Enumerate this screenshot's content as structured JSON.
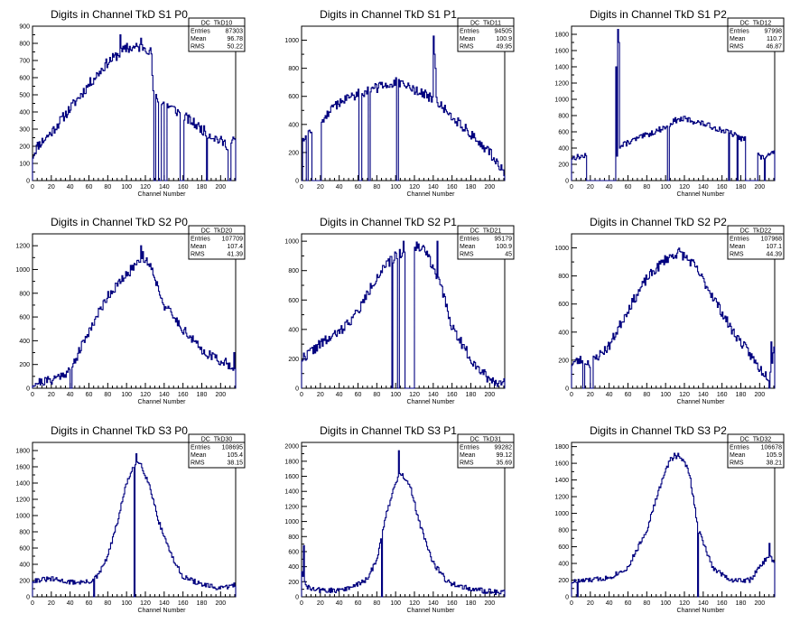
{
  "xlabel": "Channel Number",
  "x_ticks": [
    0,
    20,
    40,
    60,
    80,
    100,
    120,
    140,
    160,
    180,
    200
  ],
  "xlim": [
    0,
    216
  ],
  "stats_labels": {
    "entries": "Entries",
    "mean": "Mean",
    "rms": "RMS"
  },
  "colors": {
    "line": "#00007f",
    "frame": "#000000",
    "background": "#ffffff"
  },
  "chart_data": [
    {
      "type": "histogram-step",
      "title": "Digits in Channel TkD S1 P0",
      "stats": {
        "name": "DC_TkD10",
        "entries": "87303",
        "mean": "96.78",
        "rms": "50.22"
      },
      "ylim": [
        0,
        900
      ],
      "y_ticks": [
        0,
        100,
        200,
        300,
        400,
        500,
        600,
        700,
        800,
        900
      ],
      "profile": [
        [
          0,
          140
        ],
        [
          5,
          200
        ],
        [
          20,
          280
        ],
        [
          40,
          420
        ],
        [
          60,
          560
        ],
        [
          80,
          690
        ],
        [
          100,
          770
        ],
        [
          120,
          780
        ],
        [
          127,
          740
        ],
        [
          128,
          500
        ],
        [
          160,
          380
        ],
        [
          175,
          320
        ],
        [
          185,
          280
        ],
        [
          200,
          230
        ],
        [
          210,
          200
        ],
        [
          216,
          250
        ]
      ],
      "noise": 30,
      "seed": 11,
      "spikes": [
        [
          93,
          850
        ],
        [
          100,
          800
        ],
        [
          115,
          830
        ]
      ],
      "dips": [
        [
          129,
          0
        ],
        [
          130,
          0
        ],
        [
          134,
          0
        ],
        [
          135,
          0
        ],
        [
          136,
          0
        ],
        [
          140,
          0
        ],
        [
          141,
          0
        ],
        [
          142,
          0
        ],
        [
          157,
          0
        ],
        [
          158,
          0
        ],
        [
          159,
          0
        ],
        [
          160,
          0
        ],
        [
          185,
          0
        ],
        [
          208,
          0
        ],
        [
          209,
          0
        ],
        [
          210,
          0
        ]
      ]
    },
    {
      "type": "histogram-step",
      "title": "Digits in Channel TkD S1 P1",
      "stats": {
        "name": "DC_TkD11",
        "entries": "94505",
        "mean": "100.9",
        "rms": "49.95"
      },
      "ylim": [
        0,
        1100
      ],
      "y_ticks": [
        0,
        200,
        400,
        600,
        800,
        1000
      ],
      "profile": [
        [
          0,
          300
        ],
        [
          20,
          420
        ],
        [
          40,
          560
        ],
        [
          60,
          620
        ],
        [
          80,
          660
        ],
        [
          100,
          700
        ],
        [
          120,
          650
        ],
        [
          140,
          580
        ],
        [
          160,
          460
        ],
        [
          180,
          330
        ],
        [
          200,
          200
        ],
        [
          216,
          60
        ]
      ],
      "noise": 35,
      "seed": 12,
      "spikes": [
        [
          140,
          1030
        ],
        [
          141,
          900
        ],
        [
          142,
          800
        ]
      ],
      "dips": [
        [
          0,
          0
        ],
        [
          5,
          0
        ],
        [
          6,
          0
        ],
        [
          11,
          0
        ],
        [
          12,
          0
        ],
        [
          13,
          0
        ],
        [
          14,
          0
        ],
        [
          15,
          0
        ],
        [
          16,
          0
        ],
        [
          17,
          0
        ],
        [
          18,
          0
        ],
        [
          19,
          0
        ],
        [
          20,
          0
        ],
        [
          61,
          0
        ],
        [
          62,
          0
        ],
        [
          63,
          0
        ],
        [
          71,
          0
        ],
        [
          72,
          0
        ],
        [
          101,
          0
        ],
        [
          102,
          0
        ]
      ]
    },
    {
      "type": "histogram-step",
      "title": "Digits in Channel TkD S1 P2",
      "stats": {
        "name": "DC_TkD12",
        "entries": "97998",
        "mean": "110.7",
        "rms": "46.87"
      },
      "ylim": [
        0,
        1900
      ],
      "y_ticks": [
        0,
        200,
        400,
        600,
        800,
        1000,
        1200,
        1400,
        1600,
        1800
      ],
      "profile": [
        [
          0,
          280
        ],
        [
          12,
          300
        ],
        [
          15,
          300
        ],
        [
          47,
          380
        ],
        [
          50,
          400
        ],
        [
          60,
          470
        ],
        [
          80,
          560
        ],
        [
          100,
          660
        ],
        [
          110,
          740
        ],
        [
          120,
          760
        ],
        [
          140,
          700
        ],
        [
          160,
          620
        ],
        [
          170,
          580
        ],
        [
          180,
          520
        ],
        [
          195,
          480
        ],
        [
          200,
          280
        ],
        [
          210,
          300
        ],
        [
          216,
          350
        ]
      ],
      "noise": 35,
      "seed": 13,
      "spikes": [
        [
          47,
          1400
        ],
        [
          48,
          300
        ],
        [
          49,
          1860
        ],
        [
          50,
          1700
        ]
      ],
      "dips": [
        [
          16,
          0
        ],
        [
          17,
          0
        ],
        [
          18,
          0
        ],
        [
          19,
          0
        ],
        [
          20,
          0
        ],
        [
          21,
          0
        ],
        [
          22,
          0
        ],
        [
          23,
          0
        ],
        [
          24,
          0
        ],
        [
          25,
          0
        ],
        [
          26,
          0
        ],
        [
          27,
          0
        ],
        [
          28,
          0
        ],
        [
          29,
          0
        ],
        [
          30,
          0
        ],
        [
          31,
          0
        ],
        [
          32,
          0
        ],
        [
          33,
          0
        ],
        [
          34,
          0
        ],
        [
          35,
          0
        ],
        [
          36,
          0
        ],
        [
          37,
          0
        ],
        [
          38,
          0
        ],
        [
          39,
          0
        ],
        [
          40,
          0
        ],
        [
          41,
          0
        ],
        [
          42,
          0
        ],
        [
          43,
          0
        ],
        [
          44,
          0
        ],
        [
          45,
          0
        ],
        [
          46,
          0
        ],
        [
          102,
          0
        ],
        [
          103,
          0
        ],
        [
          167,
          0
        ],
        [
          176,
          0
        ],
        [
          185,
          0
        ],
        [
          186,
          0
        ],
        [
          187,
          0
        ],
        [
          188,
          0
        ],
        [
          189,
          0
        ],
        [
          190,
          0
        ],
        [
          191,
          0
        ],
        [
          192,
          0
        ],
        [
          193,
          0
        ],
        [
          194,
          0
        ],
        [
          195,
          0
        ],
        [
          196,
          0
        ],
        [
          197,
          0
        ],
        [
          205,
          0
        ]
      ]
    },
    {
      "type": "histogram-step",
      "title": "Digits in Channel TkD S2 P0",
      "stats": {
        "name": "DC_TkD20",
        "entries": "107709",
        "mean": "107.4",
        "rms": "41.39"
      },
      "ylim": [
        0,
        1300
      ],
      "y_ticks": [
        0,
        200,
        400,
        600,
        800,
        1000,
        1200
      ],
      "profile": [
        [
          0,
          40
        ],
        [
          20,
          70
        ],
        [
          40,
          150
        ],
        [
          60,
          480
        ],
        [
          80,
          780
        ],
        [
          100,
          950
        ],
        [
          115,
          1100
        ],
        [
          125,
          1050
        ],
        [
          140,
          700
        ],
        [
          160,
          500
        ],
        [
          180,
          320
        ],
        [
          200,
          230
        ],
        [
          216,
          180
        ]
      ],
      "noise": 40,
      "seed": 21,
      "spikes": [
        [
          115,
          1200
        ],
        [
          117,
          1150
        ],
        [
          214,
          300
        ]
      ],
      "dips": [
        [
          40,
          0
        ],
        [
          41,
          0
        ]
      ]
    },
    {
      "type": "histogram-step",
      "title": "Digits in Channel TkD S2 P1",
      "stats": {
        "name": "DC_TkD21",
        "entries": "95179",
        "mean": "100.9",
        "rms": "45"
      },
      "ylim": [
        0,
        1050
      ],
      "y_ticks": [
        0,
        200,
        400,
        600,
        800,
        1000
      ],
      "profile": [
        [
          0,
          200
        ],
        [
          20,
          300
        ],
        [
          40,
          380
        ],
        [
          60,
          520
        ],
        [
          80,
          760
        ],
        [
          100,
          900
        ],
        [
          115,
          960
        ],
        [
          130,
          960
        ],
        [
          145,
          760
        ],
        [
          160,
          420
        ],
        [
          180,
          200
        ],
        [
          200,
          60
        ],
        [
          216,
          30
        ]
      ],
      "noise": 35,
      "seed": 22,
      "spikes": [
        [
          144,
          1000
        ],
        [
          108,
          1000
        ]
      ],
      "dips": [
        [
          96,
          0
        ],
        [
          102,
          0
        ],
        [
          103,
          0
        ],
        [
          110,
          0
        ],
        [
          111,
          0
        ],
        [
          112,
          0
        ],
        [
          113,
          0
        ],
        [
          114,
          0
        ],
        [
          115,
          0
        ],
        [
          116,
          0
        ],
        [
          117,
          0
        ],
        [
          118,
          0
        ],
        [
          119,
          0
        ]
      ]
    },
    {
      "type": "histogram-step",
      "title": "Digits in Channel TkD S2 P2",
      "stats": {
        "name": "DC_TkD22",
        "entries": "107968",
        "mean": "107.1",
        "rms": "44.39"
      },
      "ylim": [
        0,
        1100
      ],
      "y_ticks": [
        0,
        200,
        400,
        600,
        800,
        1000
      ],
      "profile": [
        [
          0,
          180
        ],
        [
          10,
          200
        ],
        [
          20,
          180
        ],
        [
          40,
          300
        ],
        [
          60,
          560
        ],
        [
          80,
          780
        ],
        [
          100,
          920
        ],
        [
          115,
          970
        ],
        [
          130,
          880
        ],
        [
          150,
          660
        ],
        [
          170,
          420
        ],
        [
          190,
          240
        ],
        [
          200,
          140
        ],
        [
          210,
          80
        ],
        [
          216,
          300
        ]
      ],
      "noise": 35,
      "seed": 23,
      "spikes": [
        [
          212,
          330
        ]
      ],
      "dips": [
        [
          12,
          0
        ],
        [
          13,
          0
        ],
        [
          20,
          0
        ],
        [
          21,
          0
        ],
        [
          22,
          0
        ],
        [
          210,
          0
        ]
      ]
    },
    {
      "type": "histogram-step",
      "title": "Digits in Channel TkD S3 P0",
      "stats": {
        "name": "DC_TkD30",
        "entries": "108695",
        "mean": "105.4",
        "rms": "38.15"
      },
      "ylim": [
        0,
        1900
      ],
      "y_ticks": [
        0,
        200,
        400,
        600,
        800,
        1000,
        1200,
        1400,
        1600,
        1800
      ],
      "profile": [
        [
          0,
          200
        ],
        [
          20,
          220
        ],
        [
          40,
          180
        ],
        [
          60,
          180
        ],
        [
          70,
          260
        ],
        [
          80,
          500
        ],
        [
          90,
          900
        ],
        [
          100,
          1400
        ],
        [
          110,
          1650
        ],
        [
          115,
          1650
        ],
        [
          125,
          1350
        ],
        [
          135,
          900
        ],
        [
          150,
          450
        ],
        [
          160,
          250
        ],
        [
          180,
          150
        ],
        [
          200,
          100
        ],
        [
          216,
          150
        ]
      ],
      "noise": 30,
      "seed": 31,
      "spikes": [
        [
          110,
          1760
        ]
      ],
      "dips": [
        [
          65,
          0
        ],
        [
          108,
          0
        ]
      ]
    },
    {
      "type": "histogram-step",
      "title": "Digits in Channel TkD S3 P1",
      "stats": {
        "name": "DC_TkD31",
        "entries": "99282",
        "mean": "99.12",
        "rms": "35.69"
      },
      "ylim": [
        0,
        2050
      ],
      "y_ticks": [
        0,
        200,
        400,
        600,
        800,
        1000,
        1200,
        1400,
        1600,
        1800,
        2000
      ],
      "profile": [
        [
          0,
          380
        ],
        [
          4,
          150
        ],
        [
          10,
          100
        ],
        [
          30,
          80
        ],
        [
          50,
          110
        ],
        [
          70,
          230
        ],
        [
          80,
          500
        ],
        [
          90,
          1100
        ],
        [
          100,
          1500
        ],
        [
          105,
          1650
        ],
        [
          115,
          1500
        ],
        [
          125,
          1000
        ],
        [
          140,
          450
        ],
        [
          155,
          200
        ],
        [
          180,
          100
        ],
        [
          200,
          70
        ],
        [
          216,
          60
        ]
      ],
      "noise": 35,
      "seed": 32,
      "spikes": [
        [
          2,
          680
        ],
        [
          103,
          1940
        ]
      ],
      "dips": [
        [
          85,
          0
        ]
      ]
    },
    {
      "type": "histogram-step",
      "title": "Digits in Channel TkD S3 P2",
      "stats": {
        "name": "DC_TkD32",
        "entries": "106678",
        "mean": "105.9",
        "rms": "38.21"
      },
      "ylim": [
        0,
        1850
      ],
      "y_ticks": [
        0,
        200,
        400,
        600,
        800,
        1000,
        1200,
        1400,
        1600,
        1800
      ],
      "profile": [
        [
          0,
          180
        ],
        [
          20,
          200
        ],
        [
          40,
          230
        ],
        [
          60,
          350
        ],
        [
          80,
          800
        ],
        [
          95,
          1350
        ],
        [
          105,
          1650
        ],
        [
          115,
          1700
        ],
        [
          125,
          1500
        ],
        [
          135,
          800
        ],
        [
          150,
          350
        ],
        [
          170,
          200
        ],
        [
          190,
          200
        ],
        [
          200,
          350
        ],
        [
          210,
          500
        ],
        [
          216,
          400
        ]
      ],
      "noise": 30,
      "seed": 33,
      "spikes": [
        [
          109,
          1720
        ],
        [
          136,
          780
        ],
        [
          210,
          640
        ]
      ],
      "dips": [
        [
          6,
          0
        ],
        [
          134,
          0
        ]
      ]
    }
  ]
}
